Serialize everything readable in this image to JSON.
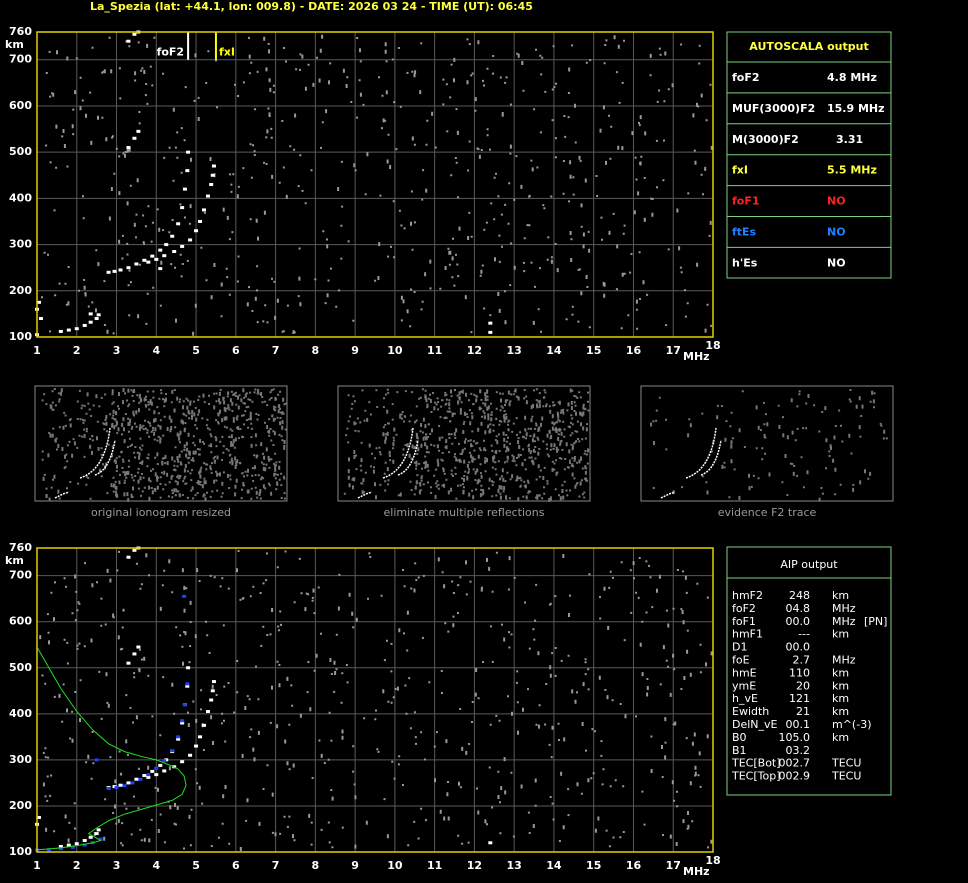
{
  "header": "La_Spezia (lat: +44.1, lon: 009.8) - DATE: 2026 03 24 - TIME (UT): 06:45",
  "chart_data": [
    {
      "type": "scatter",
      "x_label": "MHz",
      "y_label": "km",
      "xlim": [
        1,
        18
      ],
      "ylim": [
        100,
        760
      ],
      "xticks": [
        1,
        2,
        3,
        4,
        5,
        6,
        7,
        8,
        9,
        10,
        11,
        12,
        13,
        14,
        15,
        16,
        17,
        18
      ],
      "yticks": [
        100,
        200,
        300,
        400,
        500,
        600,
        700,
        760
      ],
      "grid": true,
      "markers": [
        {
          "label": "foF2",
          "x": 4.8,
          "color": "#ffffff"
        },
        {
          "label": "fxI",
          "x": 5.5,
          "color": "#ffff00"
        }
      ],
      "series": [
        {
          "color": "#ffffff",
          "mode": "markers",
          "x": [
            1.0,
            1.0,
            1.05,
            1.1,
            1.6,
            1.8,
            2.0,
            2.2,
            2.35,
            2.5,
            2.55,
            2.8,
            2.95,
            3.1,
            3.3,
            3.5,
            3.7,
            3.9,
            4.1,
            4.25,
            4.4,
            4.55,
            4.65,
            4.72,
            4.78,
            4.8,
            3.3,
            3.45,
            3.55,
            2.35
          ],
          "values": [
            105,
            160,
            175,
            140,
            112,
            115,
            118,
            125,
            132,
            140,
            148,
            240,
            242,
            245,
            250,
            258,
            266,
            275,
            288,
            300,
            318,
            345,
            380,
            420,
            460,
            500,
            510,
            530,
            545,
            150
          ]
        },
        {
          "color": "#ffffff",
          "mode": "markers",
          "x": [
            3.8,
            4.0,
            4.2,
            4.45,
            4.65,
            4.85,
            5.0,
            5.1,
            5.2,
            5.3,
            5.38,
            5.42,
            5.45,
            12.4,
            12.4,
            4.1,
            3.3,
            3.45,
            3.55
          ],
          "values": [
            262,
            268,
            276,
            285,
            296,
            310,
            330,
            350,
            375,
            405,
            430,
            450,
            470,
            110,
            130,
            248,
            740,
            755,
            760
          ]
        }
      ]
    },
    {
      "type": "scatter",
      "x_label": "MHz",
      "y_label": "km",
      "xlim": [
        1,
        18
      ],
      "ylim": [
        100,
        760
      ],
      "xticks": [
        1,
        2,
        3,
        4,
        5,
        6,
        7,
        8,
        9,
        10,
        11,
        12,
        13,
        14,
        15,
        16,
        17,
        18
      ],
      "yticks": [
        100,
        200,
        300,
        400,
        500,
        600,
        700,
        760
      ],
      "grid": true,
      "series": [
        {
          "color": "#ffffff",
          "mode": "markers",
          "x": [
            1.0,
            1.05,
            1.6,
            1.8,
            2.0,
            2.2,
            2.35,
            2.5,
            2.55,
            2.8,
            2.95,
            3.1,
            3.3,
            3.5,
            3.7,
            3.9,
            4.1,
            4.25,
            4.4,
            4.55,
            4.65,
            4.72,
            4.78,
            4.8,
            3.3,
            3.45,
            3.55,
            3.8,
            4.0,
            4.2,
            4.45,
            4.65,
            4.85,
            5.0,
            5.1,
            5.2,
            5.3,
            5.38,
            5.42,
            5.45,
            12.4,
            3.3,
            3.45,
            3.55
          ],
          "values": [
            160,
            175,
            112,
            115,
            118,
            125,
            132,
            140,
            148,
            240,
            242,
            245,
            250,
            258,
            266,
            275,
            288,
            300,
            318,
            345,
            380,
            420,
            460,
            500,
            510,
            530,
            545,
            262,
            268,
            276,
            285,
            296,
            310,
            330,
            350,
            375,
            405,
            430,
            450,
            470,
            120,
            740,
            755,
            760
          ]
        },
        {
          "color": "#2040ff",
          "mode": "markers",
          "x": [
            1.0,
            1.3,
            1.6,
            1.9,
            2.2,
            2.4,
            2.6,
            2.8,
            3.0,
            3.2,
            3.4,
            3.6,
            3.8,
            4.0,
            4.2,
            4.4,
            4.55,
            4.65,
            4.72,
            4.78,
            4.7,
            2.5
          ],
          "values": [
            104,
            105,
            107,
            110,
            115,
            120,
            128,
            238,
            240,
            244,
            250,
            258,
            268,
            282,
            298,
            320,
            350,
            385,
            420,
            465,
            655,
            300
          ]
        },
        {
          "color": "#20e020",
          "mode": "line",
          "x": [
            1.0,
            1.3,
            1.6,
            2.0,
            2.4,
            2.8,
            3.2,
            3.6,
            4.0,
            4.3,
            4.55,
            4.7,
            4.75,
            4.65,
            4.4,
            4.0,
            3.6,
            3.2,
            2.8,
            2.5,
            2.3,
            2.6,
            2.4,
            2.0,
            1.6,
            1.2,
            1.0
          ],
          "values": [
            545,
            500,
            455,
            405,
            365,
            335,
            318,
            308,
            300,
            290,
            280,
            265,
            245,
            225,
            212,
            202,
            192,
            182,
            168,
            152,
            140,
            125,
            120,
            114,
            109,
            106,
            105
          ]
        }
      ]
    }
  ],
  "autoscala": {
    "title": "AUTOSCALA output",
    "rows": [
      {
        "label": "foF2",
        "value": "4.8 MHz",
        "color": "#ffffff"
      },
      {
        "label": "MUF(3000)F2",
        "value": "15.9 MHz",
        "color": "#ffffff"
      },
      {
        "label": "M(3000)F2",
        "value": "3.31",
        "color": "#ffffff"
      },
      {
        "label": "fxI",
        "value": "5.5 MHz",
        "color": "#ffff40"
      },
      {
        "label": "foF1",
        "value": "NO",
        "color": "#ff2020"
      },
      {
        "label": "ftEs",
        "value": "NO",
        "color": "#2080ff"
      },
      {
        "label": "h'Es",
        "value": "NO",
        "color": "#ffffff"
      }
    ]
  },
  "panels": [
    "original ionogram resized",
    "eliminate multiple reflections",
    "evidence F2 trace"
  ],
  "aip": {
    "title": "AIP output",
    "rows": [
      [
        "hmF2",
        "248",
        "km"
      ],
      [
        "foF2",
        "04.8",
        "MHz"
      ],
      [
        "foF1",
        "00.0",
        "MHz",
        "[PN]"
      ],
      [
        "hmF1",
        "---",
        "km"
      ],
      [
        "D1",
        "00.0"
      ],
      [
        "foE",
        "2.7",
        "MHz"
      ],
      [
        "hmE",
        "110",
        "km"
      ],
      [
        "ymE",
        "20",
        "km"
      ],
      [
        "h_vE",
        "121",
        "km"
      ],
      [
        "Ewidth",
        "21",
        "km"
      ],
      [
        "DelN_vE",
        "00.1",
        "m^(-3)"
      ],
      [
        "B0",
        "105.0",
        "km"
      ],
      [
        "B1",
        "03.2"
      ],
      [
        "TEC[Bot]",
        "002.7",
        "TECU"
      ],
      [
        "TEC[Top]",
        "002.9",
        "TECU"
      ]
    ]
  }
}
